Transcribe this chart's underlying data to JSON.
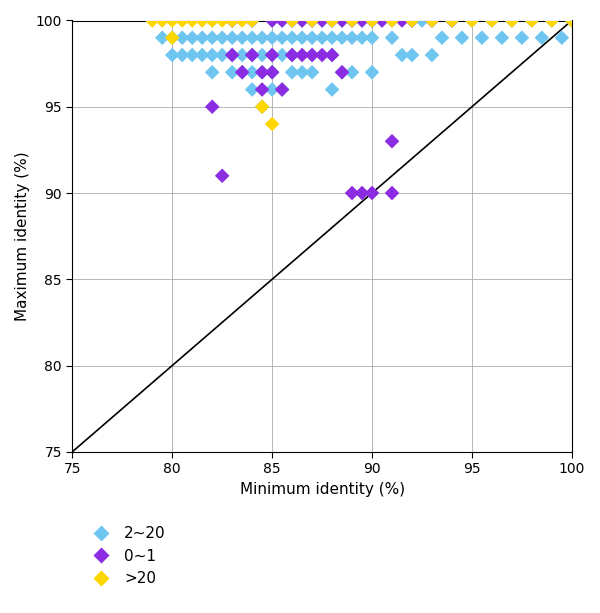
{
  "xlabel": "Minimum identity (%)",
  "ylabel": "Maximum identity (%)",
  "xlim": [
    75,
    100
  ],
  "ylim": [
    75,
    100
  ],
  "xticks": [
    75,
    80,
    85,
    90,
    95,
    100
  ],
  "yticks": [
    75,
    80,
    85,
    90,
    95,
    100
  ],
  "legend_labels": [
    "2~20",
    "0~1",
    ">20"
  ],
  "legend_colors": [
    "#6EC6F0",
    "#8B2BE2",
    "#FFD700"
  ],
  "blue_x": [
    79.5,
    80,
    80,
    80.5,
    80.5,
    81,
    81,
    81.5,
    81.5,
    82,
    82,
    82,
    82,
    82.5,
    82.5,
    83,
    83,
    83,
    83,
    83.5,
    83.5,
    83.5,
    84,
    84,
    84,
    84,
    84,
    84.5,
    84.5,
    84.5,
    84.5,
    85,
    85,
    85,
    85,
    85,
    85.5,
    85.5,
    85.5,
    85.5,
    86,
    86,
    86,
    86,
    86.5,
    86.5,
    86.5,
    87,
    87,
    87,
    87,
    87.5,
    87.5,
    88,
    88,
    88,
    88,
    88.5,
    88.5,
    88.5,
    89,
    89,
    89,
    89.5,
    89.5,
    90,
    90,
    90,
    90.5,
    91,
    91,
    91.5,
    92,
    92,
    92.5,
    93,
    93,
    93.5,
    94,
    94.5,
    95,
    95.5,
    96,
    96.5,
    97,
    97.5,
    98,
    98.5,
    99,
    99.5,
    100
  ],
  "blue_y": [
    99,
    99,
    98,
    99,
    98,
    99,
    98,
    99,
    98,
    100,
    99,
    98,
    97,
    99,
    98,
    100,
    99,
    98,
    97,
    99,
    98,
    97,
    100,
    99,
    98,
    97,
    96,
    99,
    98,
    97,
    95,
    100,
    99,
    98,
    97,
    96,
    100,
    99,
    98,
    96,
    100,
    99,
    98,
    97,
    100,
    99,
    97,
    100,
    99,
    98,
    97,
    100,
    99,
    100,
    99,
    98,
    96,
    100,
    99,
    97,
    100,
    99,
    97,
    100,
    99,
    100,
    99,
    97,
    100,
    99,
    100,
    98,
    100,
    98,
    100,
    98,
    100,
    99,
    100,
    99,
    100,
    99,
    100,
    99,
    100,
    99,
    100,
    99,
    100,
    99,
    100
  ],
  "purple_x": [
    82,
    82.5,
    83,
    83,
    83.5,
    84,
    84,
    84.5,
    84.5,
    85,
    85,
    85,
    85.5,
    85.5,
    86,
    86,
    86.5,
    86.5,
    87,
    87,
    87.5,
    87.5,
    88,
    88,
    88.5,
    88.5,
    89,
    89,
    89.5,
    89.5,
    90,
    90,
    90.5,
    91,
    91,
    91.5,
    92,
    93,
    94
  ],
  "purple_y": [
    95,
    91,
    100,
    98,
    97,
    100,
    98,
    97,
    96,
    100,
    98,
    97,
    100,
    96,
    100,
    98,
    100,
    98,
    100,
    98,
    100,
    98,
    100,
    98,
    100,
    97,
    100,
    90,
    100,
    90,
    100,
    90,
    100,
    93,
    90,
    100,
    100,
    100,
    100
  ],
  "yellow_x": [
    79,
    79.5,
    80,
    80,
    80.5,
    81,
    81.5,
    82,
    82.5,
    83,
    83.5,
    84,
    84.5,
    85,
    86,
    87,
    88,
    89,
    90,
    91,
    92,
    93,
    94,
    95,
    96,
    97,
    98,
    99,
    100
  ],
  "yellow_y": [
    100,
    100,
    100,
    99,
    100,
    100,
    100,
    100,
    100,
    100,
    100,
    100,
    95,
    94,
    100,
    100,
    100,
    100,
    100,
    100,
    100,
    100,
    100,
    100,
    100,
    100,
    100,
    100,
    100
  ],
  "marker_size": 55,
  "bg_color": "#FFFFFF",
  "figsize": [
    6.0,
    6.13
  ]
}
